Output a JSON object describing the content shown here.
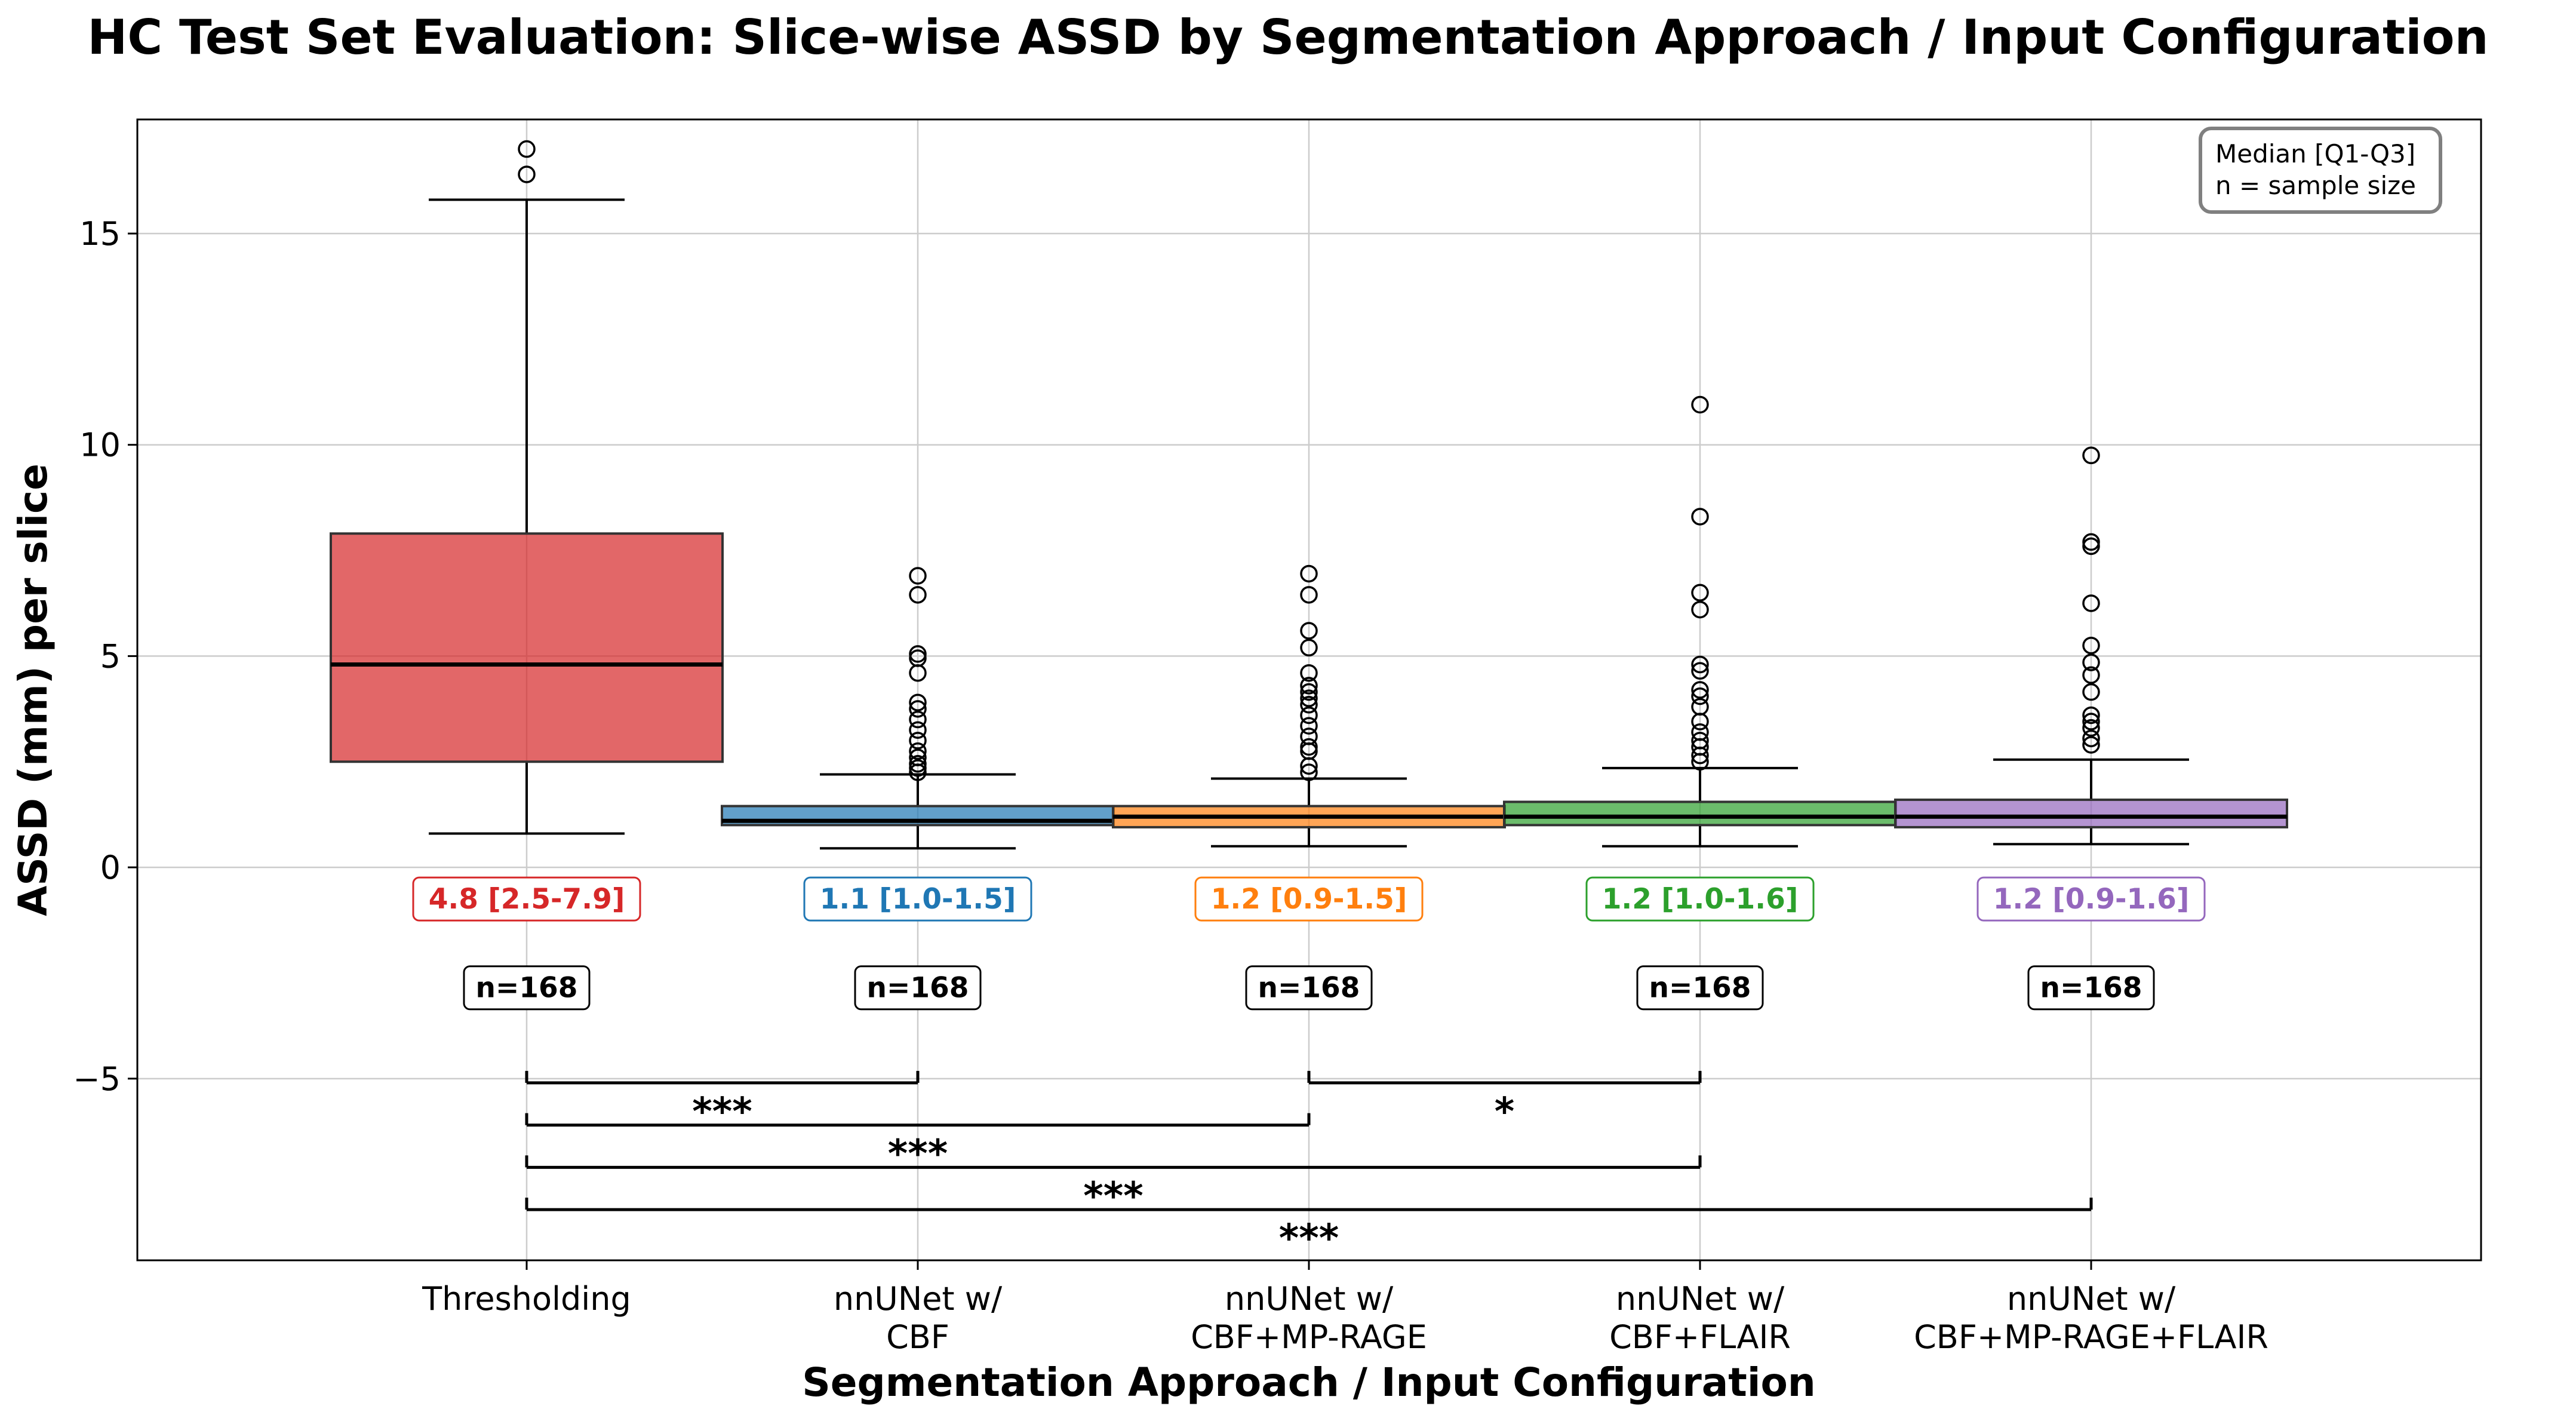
{
  "chart_data": {
    "type": "box",
    "title": "HC Test Set Evaluation: Slice-wise ASSD by Segmentation Approach / Input Configuration",
    "xlabel": "Segmentation Approach / Input Configuration",
    "ylabel": "ASSD (mm) per slice",
    "ylim": [
      -9.3,
      17.7
    ],
    "yticks": [
      -5,
      0,
      5,
      10,
      15
    ],
    "ytick_labels": [
      "−5",
      "0",
      "5",
      "10",
      "15"
    ],
    "grid": true,
    "legend_box": {
      "position": "top-right",
      "lines": [
        "Median [Q1-Q3]",
        "n = sample size"
      ]
    },
    "categories": [
      [
        "Thresholding"
      ],
      [
        "nnUNet w/",
        "CBF"
      ],
      [
        "nnUNet w/",
        "CBF+MP-RAGE"
      ],
      [
        "nnUNet w/",
        "CBF+FLAIR"
      ],
      [
        "nnUNet w/",
        "CBF+MP-RAGE+FLAIR"
      ]
    ],
    "boxes": [
      {
        "color": "#d62728",
        "whisker_low": 0.8,
        "q1": 2.5,
        "median": 4.8,
        "q3": 7.9,
        "whisker_high": 15.8,
        "outliers": [
          16.4,
          17.0
        ],
        "stat_label": "4.8 [2.5-7.9]",
        "n_label": "n=168"
      },
      {
        "color": "#1f77b4",
        "whisker_low": 0.45,
        "q1": 1.0,
        "median": 1.1,
        "q3": 1.45,
        "whisker_high": 2.2,
        "outliers": [
          2.25,
          2.35,
          2.45,
          2.6,
          2.75,
          3.0,
          3.25,
          3.5,
          3.75,
          3.9,
          4.6,
          4.95,
          5.05,
          6.45,
          6.9
        ],
        "stat_label": "1.1 [1.0-1.5]",
        "n_label": "n=168"
      },
      {
        "color": "#ff7f0e",
        "whisker_low": 0.5,
        "q1": 0.95,
        "median": 1.2,
        "q3": 1.45,
        "whisker_high": 2.1,
        "outliers": [
          2.25,
          2.4,
          2.75,
          2.85,
          3.1,
          3.35,
          3.6,
          3.85,
          4.0,
          4.15,
          4.3,
          4.6,
          5.2,
          5.6,
          6.45,
          6.95
        ],
        "stat_label": "1.2 [0.9-1.5]",
        "n_label": "n=168"
      },
      {
        "color": "#2ca02c",
        "whisker_low": 0.5,
        "q1": 1.0,
        "median": 1.2,
        "q3": 1.55,
        "whisker_high": 2.35,
        "outliers": [
          2.5,
          2.65,
          2.85,
          3.0,
          3.2,
          3.45,
          3.8,
          4.05,
          4.2,
          4.65,
          4.8,
          6.1,
          6.5,
          8.3,
          10.95
        ],
        "stat_label": "1.2 [1.0-1.6]",
        "n_label": "n=168"
      },
      {
        "color": "#9467bd",
        "whisker_low": 0.55,
        "q1": 0.95,
        "median": 1.2,
        "q3": 1.6,
        "whisker_high": 2.55,
        "outliers": [
          2.9,
          3.05,
          3.3,
          3.45,
          3.6,
          4.15,
          4.55,
          4.85,
          5.25,
          6.25,
          7.6,
          7.7,
          9.75
        ],
        "stat_label": "1.2 [0.9-1.6]",
        "n_label": "n=168"
      }
    ],
    "significance": [
      {
        "from": 0,
        "to": 1,
        "y": -5.1,
        "label": "***"
      },
      {
        "from": 2,
        "to": 3,
        "y": -5.1,
        "label": "*"
      },
      {
        "from": 0,
        "to": 2,
        "y": -6.1,
        "label": "***"
      },
      {
        "from": 0,
        "to": 3,
        "y": -7.1,
        "label": "***"
      },
      {
        "from": 0,
        "to": 4,
        "y": -8.1,
        "label": "***"
      }
    ]
  }
}
